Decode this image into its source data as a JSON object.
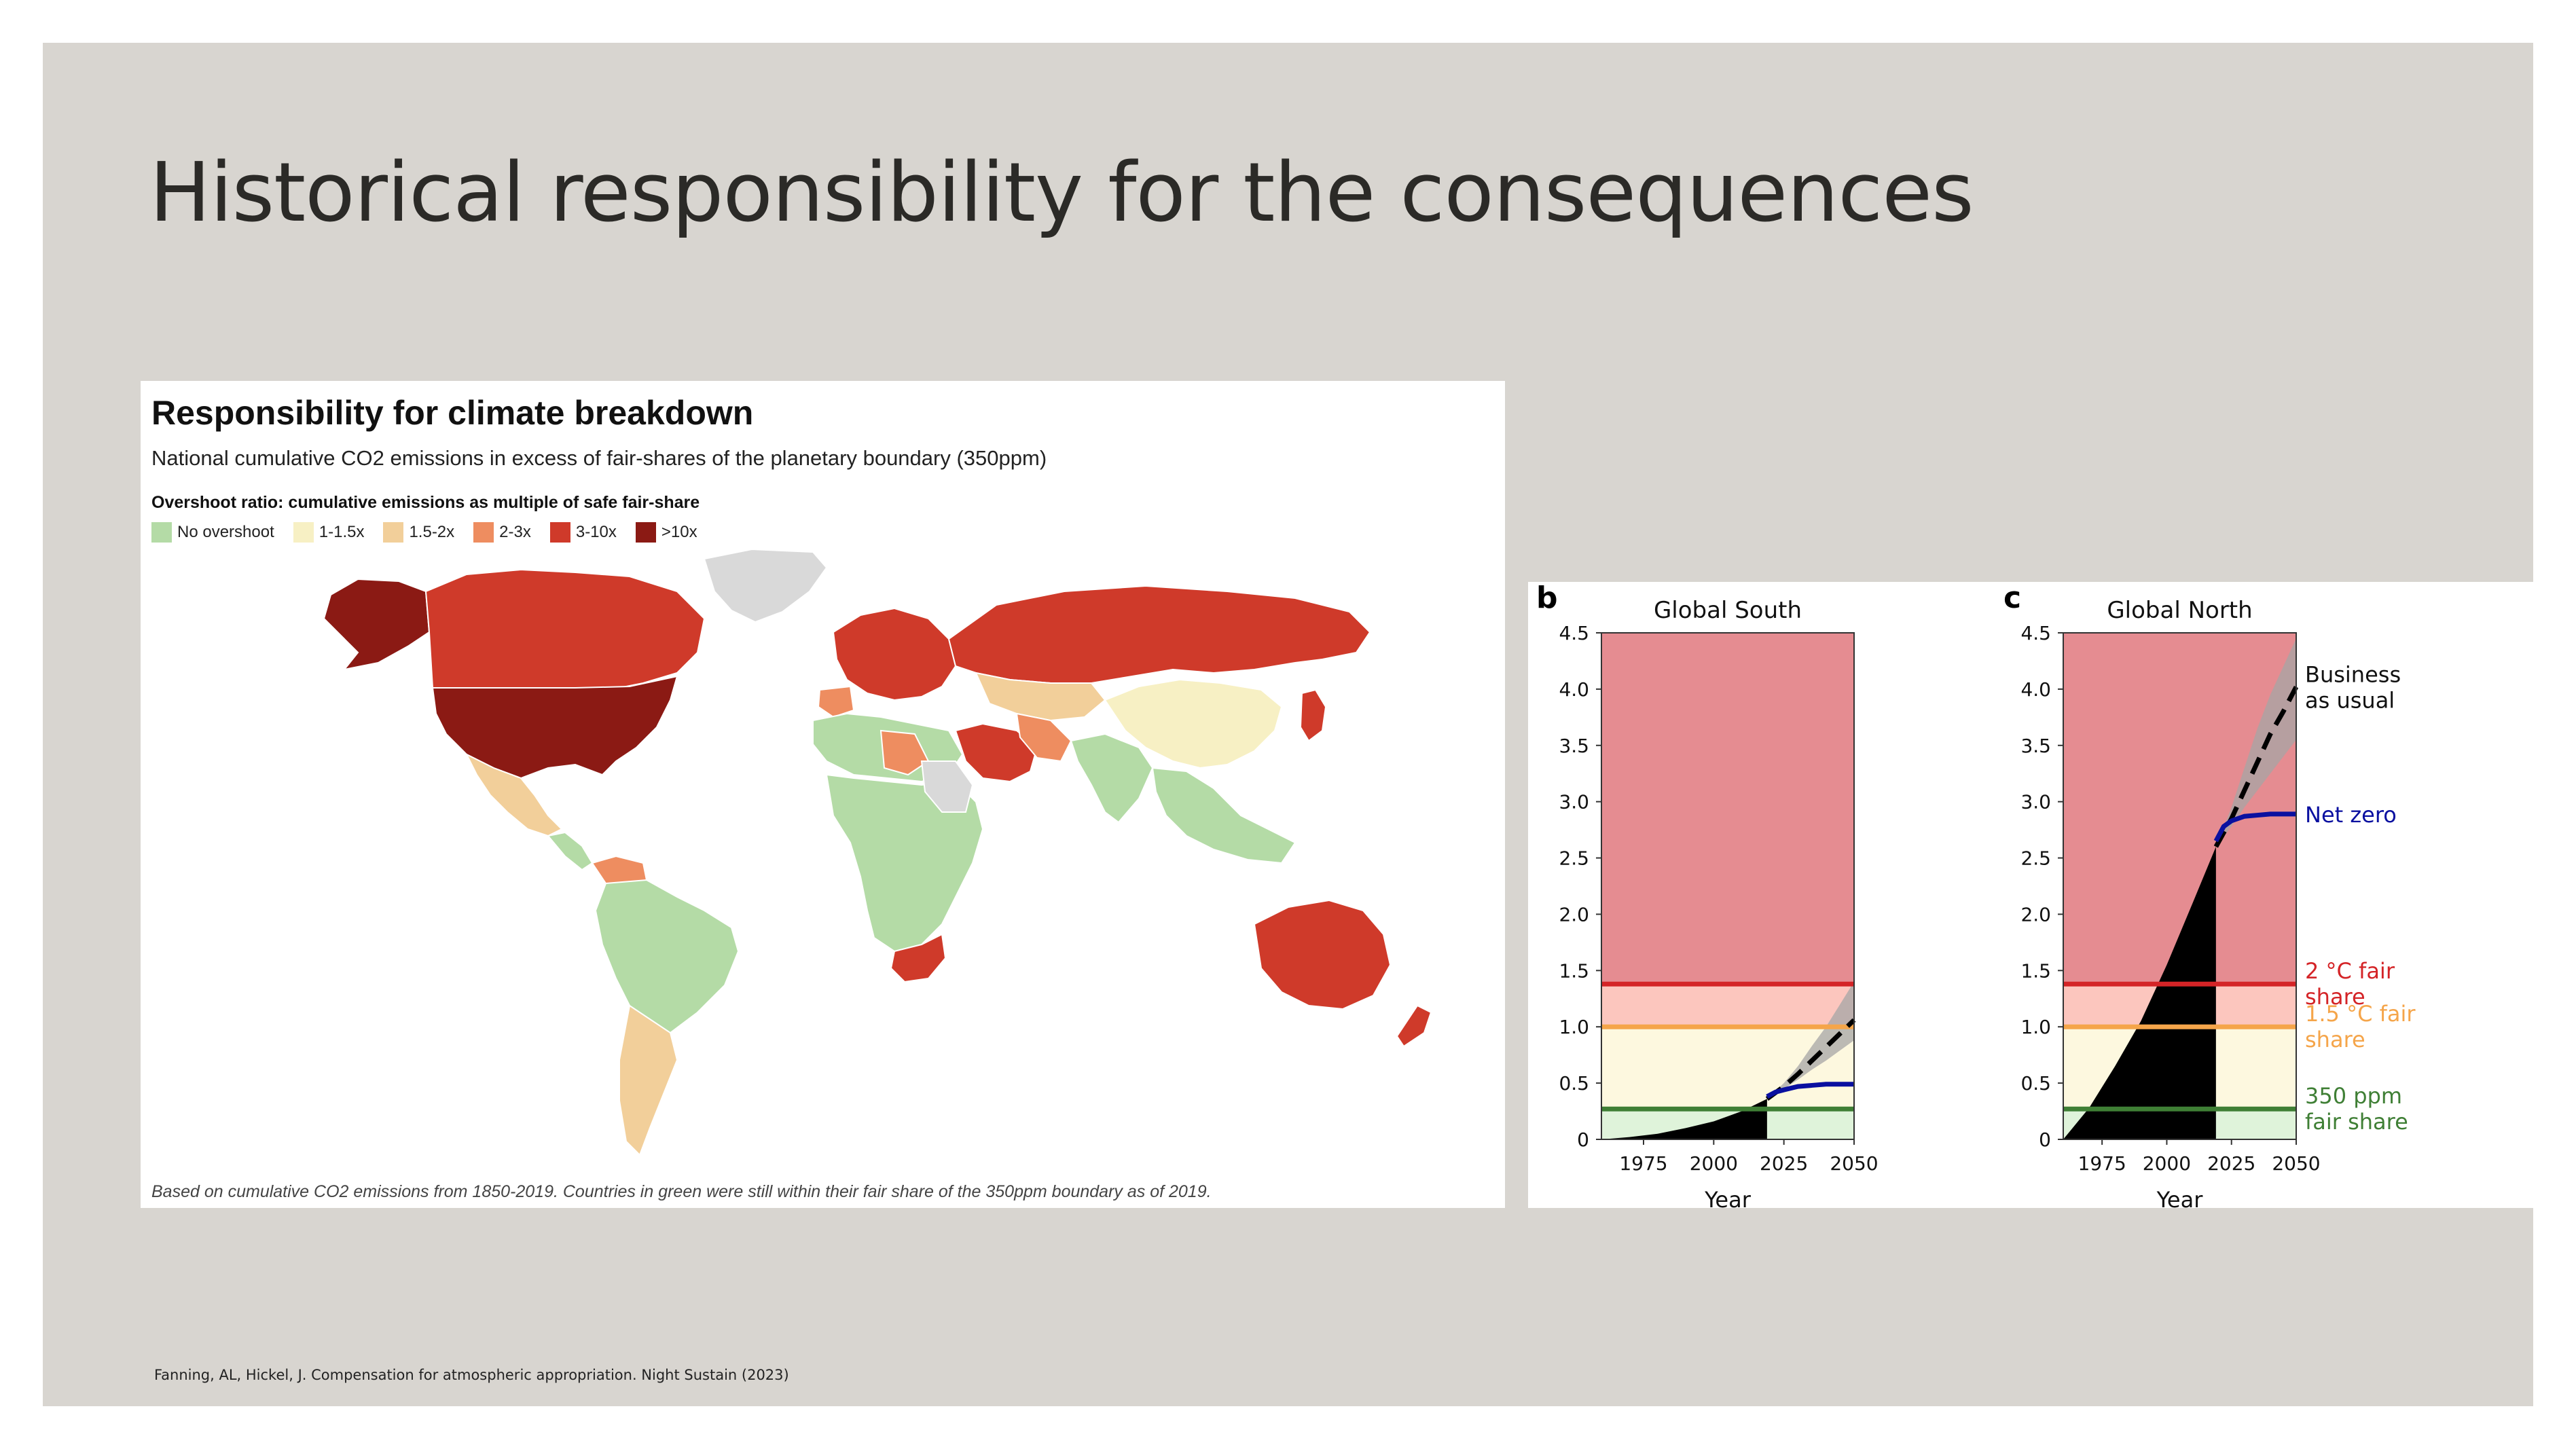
{
  "slide": {
    "title": "Historical responsibility for the consequences",
    "footnote": "Fanning, AL, Hickel, J. Compensation for atmospheric appropriation. Night Sustain (2023)"
  },
  "map": {
    "title": "Responsibility for climate breakdown",
    "subtitle": "National cumulative CO2 emissions in excess of fair-shares of the planetary boundary (350ppm)",
    "legend_title": "Overshoot ratio: cumulative emissions as multiple of safe fair-share",
    "legend": [
      {
        "label": "No overshoot",
        "color": "#b4dba6"
      },
      {
        "label": "1-1.5x",
        "color": "#f7f0c4"
      },
      {
        "label": "1.5-2x",
        "color": "#f2cf9a"
      },
      {
        "label": "2-3x",
        "color": "#ee8d60"
      },
      {
        "label": "3-10x",
        "color": "#cf3a2a"
      },
      {
        "label": ">10x",
        "color": "#8b1a14"
      }
    ],
    "no_data_color": "#d9d9d9",
    "caption": "Based on cumulative CO2 emissions from 1850-2019. Countries in green were still within their fair share of the 350ppm boundary as of 2019."
  },
  "chart_data": [
    {
      "type": "area",
      "panel_letter": "b",
      "title": "Global South",
      "xlabel": "Year",
      "xlim": [
        1960,
        2050
      ],
      "ylim": [
        0,
        4.5
      ],
      "xticks": [
        1975,
        2000,
        2025,
        2050
      ],
      "yticks": [
        0,
        0.5,
        1.0,
        1.5,
        2.0,
        2.5,
        3.0,
        3.5,
        4.0,
        4.5
      ],
      "ytick_labels": [
        "0",
        "0.5",
        "1.0",
        "1.5",
        "2.0",
        "2.5",
        "3.0",
        "3.5",
        "4.0",
        "4.5"
      ],
      "bands": [
        {
          "from": 0,
          "to": 0.27,
          "color": "#dff3da"
        },
        {
          "from": 0.27,
          "to": 1.0,
          "color": "#fdf8df"
        },
        {
          "from": 1.0,
          "to": 1.38,
          "color": "#fcc6be"
        },
        {
          "from": 1.38,
          "to": 4.5,
          "color": "#e58c91"
        }
      ],
      "thresholds": [
        {
          "value": 0.27,
          "color": "#3f7f35"
        },
        {
          "value": 1.0,
          "color": "#f5a54a"
        },
        {
          "value": 1.38,
          "color": "#d42427"
        }
      ],
      "historical": {
        "x": [
          1960,
          1970,
          1980,
          1990,
          2000,
          2010,
          2019
        ],
        "y": [
          0,
          0.02,
          0.05,
          0.1,
          0.16,
          0.25,
          0.36
        ]
      },
      "business_as_usual": {
        "x": [
          2019,
          2025,
          2030,
          2035,
          2040,
          2045,
          2050
        ],
        "y": [
          0.36,
          0.47,
          0.58,
          0.7,
          0.82,
          0.94,
          1.06
        ],
        "band_upper": [
          0.36,
          0.5,
          0.65,
          0.83,
          1.0,
          1.2,
          1.4
        ],
        "band_lower": [
          0.36,
          0.45,
          0.53,
          0.62,
          0.7,
          0.79,
          0.88
        ]
      },
      "net_zero": {
        "x": [
          2019,
          2022,
          2025,
          2030,
          2035,
          2040,
          2045,
          2050
        ],
        "y": [
          0.38,
          0.42,
          0.44,
          0.47,
          0.48,
          0.49,
          0.49,
          0.49
        ]
      }
    },
    {
      "type": "area",
      "panel_letter": "c",
      "title": "Global North",
      "xlabel": "Year",
      "xlim": [
        1960,
        2050
      ],
      "ylim": [
        0,
        4.5
      ],
      "xticks": [
        1975,
        2000,
        2025,
        2050
      ],
      "yticks": [
        0,
        0.5,
        1.0,
        1.5,
        2.0,
        2.5,
        3.0,
        3.5,
        4.0,
        4.5
      ],
      "ytick_labels": [
        "0",
        "0.5",
        "1.0",
        "1.5",
        "2.0",
        "2.5",
        "3.0",
        "3.5",
        "4.0",
        "4.5"
      ],
      "bands": [
        {
          "from": 0,
          "to": 0.27,
          "color": "#dff3da"
        },
        {
          "from": 0.27,
          "to": 1.0,
          "color": "#fdf8df"
        },
        {
          "from": 1.0,
          "to": 1.38,
          "color": "#fcc6be"
        },
        {
          "from": 1.38,
          "to": 4.5,
          "color": "#e58c91"
        }
      ],
      "thresholds": [
        {
          "value": 0.27,
          "color": "#3f7f35",
          "label_lines": [
            "350 ppm",
            "fair share"
          ]
        },
        {
          "value": 1.0,
          "color": "#f5a54a",
          "label_lines": [
            "1.5 °C fair",
            "share"
          ]
        },
        {
          "value": 1.38,
          "color": "#d42427",
          "label_lines": [
            "2 °C fair",
            "share"
          ]
        }
      ],
      "historical": {
        "x": [
          1960,
          1970,
          1980,
          1990,
          2000,
          2010,
          2019
        ],
        "y": [
          0,
          0.28,
          0.65,
          1.05,
          1.55,
          2.1,
          2.6
        ]
      },
      "business_as_usual": {
        "name_lines": [
          "Business",
          "as usual"
        ],
        "x": [
          2019,
          2025,
          2030,
          2035,
          2040,
          2045,
          2050
        ],
        "y": [
          2.6,
          2.85,
          3.1,
          3.35,
          3.6,
          3.8,
          4.02
        ],
        "band_upper": [
          2.6,
          2.95,
          3.3,
          3.65,
          3.95,
          4.2,
          4.45
        ],
        "band_lower": [
          2.6,
          2.78,
          2.95,
          3.1,
          3.25,
          3.4,
          3.55
        ]
      },
      "net_zero": {
        "name": "Net zero",
        "x": [
          2019,
          2022,
          2025,
          2030,
          2035,
          2040,
          2045,
          2050
        ],
        "y": [
          2.65,
          2.78,
          2.83,
          2.87,
          2.88,
          2.89,
          2.89,
          2.89
        ]
      }
    }
  ]
}
